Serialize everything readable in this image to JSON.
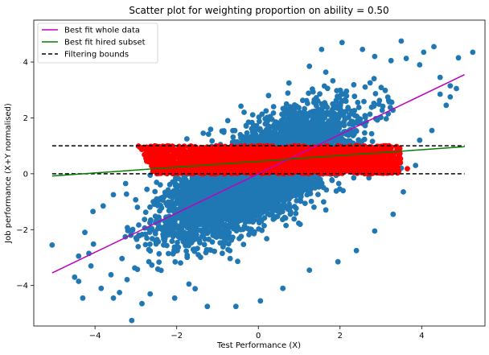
{
  "chart_data": {
    "type": "scatter",
    "title": "Scatter plot for weighting proportion on ability = 0.50",
    "xlabel": "Test Performance (X)",
    "ylabel": "Job performance (X+Y normalised)",
    "xlim": [
      -5.5,
      5.55
    ],
    "ylim": [
      -5.45,
      5.5
    ],
    "xticks": [
      -4,
      -2,
      0,
      2,
      4
    ],
    "yticks": [
      -4,
      -2,
      0,
      2,
      4
    ],
    "grid": false,
    "legend_position": "top-left",
    "colors": {
      "scatter_all": "#1f77b4",
      "scatter_hired": "#ff0000",
      "fit_whole": "#bf00bf",
      "fit_hired": "#008000",
      "bounds": "#000000"
    },
    "point_cloud": {
      "slope": 0.707,
      "residual_sd": 0.72,
      "x_sd": 1.0,
      "count": 7000
    },
    "outliers": [
      [
        -5.05,
        -2.55
      ],
      [
        -4.4,
        -3.85
      ],
      [
        -4.5,
        -3.7
      ],
      [
        -4.3,
        -4.45
      ],
      [
        -4.1,
        -3.3
      ],
      [
        -3.85,
        -4.1
      ],
      [
        -3.55,
        -4.45
      ],
      [
        -3.1,
        -5.25
      ],
      [
        -3.4,
        -4.25
      ],
      [
        -4.15,
        -2.85
      ],
      [
        -4.4,
        -2.95
      ],
      [
        -4.25,
        -2.1
      ],
      [
        -4.05,
        -1.35
      ],
      [
        -3.8,
        -1.15
      ],
      [
        -3.55,
        -0.75
      ],
      [
        -3.25,
        -0.35
      ],
      [
        -2.65,
        -0.05
      ],
      [
        -2.25,
        0.45
      ],
      [
        -1.75,
        1.25
      ],
      [
        -1.35,
        1.45
      ],
      [
        -0.75,
        1.9
      ],
      [
        -0.35,
        2.2
      ],
      [
        0.25,
        2.8
      ],
      [
        0.75,
        3.25
      ],
      [
        1.25,
        3.85
      ],
      [
        1.55,
        4.45
      ],
      [
        2.05,
        4.7
      ],
      [
        2.55,
        4.45
      ],
      [
        3.5,
        4.75
      ],
      [
        4.05,
        4.35
      ],
      [
        4.3,
        4.55
      ],
      [
        4.9,
        4.15
      ],
      [
        5.25,
        4.35
      ],
      [
        4.45,
        2.85
      ],
      [
        4.6,
        2.45
      ],
      [
        4.25,
        1.55
      ],
      [
        3.95,
        1.2
      ],
      [
        3.85,
        0.3
      ],
      [
        3.55,
        -0.65
      ],
      [
        3.3,
        -1.45
      ],
      [
        2.85,
        -2.05
      ],
      [
        2.4,
        -2.75
      ],
      [
        1.95,
        -3.15
      ],
      [
        1.25,
        -3.45
      ],
      [
        0.6,
        -4.1
      ],
      [
        0.05,
        -4.55
      ],
      [
        -0.55,
        -4.75
      ],
      [
        -1.25,
        -4.75
      ],
      [
        -2.05,
        -4.45
      ],
      [
        -2.65,
        -4.3
      ],
      [
        4.7,
        3.15
      ],
      [
        4.85,
        3.05
      ],
      [
        4.45,
        3.45
      ],
      [
        3.95,
        3.9
      ],
      [
        3.25,
        4.05
      ],
      [
        -2.85,
        -4.65
      ],
      [
        -1.7,
        -3.95
      ],
      [
        2.85,
        4.2
      ],
      [
        4.7,
        2.75
      ],
      [
        3.5,
        0.2
      ]
    ],
    "hired_band": {
      "y_min": 0.0,
      "y_max": 1.0,
      "x_left_at_ymin": -2.6,
      "x_left_at_ymax": -3.05,
      "x_right": 3.5,
      "count": 2200
    },
    "series": [
      {
        "name": "Best fit whole data",
        "type": "line",
        "x": [
          -5.05,
          5.05
        ],
        "y": [
          -3.55,
          3.55
        ]
      },
      {
        "name": "Best fit hired subset",
        "type": "line",
        "x": [
          -5.05,
          5.05
        ],
        "y": [
          -0.08,
          0.97
        ]
      },
      {
        "name": "Filtering bounds",
        "type": "dashed",
        "x": [
          -5.05,
          5.05
        ],
        "y_levels": [
          0,
          1
        ]
      }
    ]
  }
}
